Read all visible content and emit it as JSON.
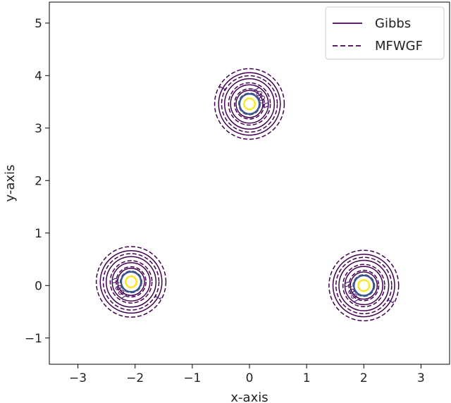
{
  "chart_data": {
    "type": "contour",
    "xlabel": "x-axis",
    "ylabel": "y-axis",
    "xlim": [
      -3.5,
      3.5
    ],
    "ylim": [
      -1.5,
      5.4
    ],
    "xticks": [
      -3,
      -2,
      -1,
      0,
      1,
      2,
      3
    ],
    "yticks": [
      -1,
      0,
      1,
      2,
      3,
      4,
      5
    ],
    "xtick_labels": [
      "−3",
      "−2",
      "−1",
      "0",
      "1",
      "2",
      "3"
    ],
    "ytick_labels": [
      "−1",
      "0",
      "1",
      "2",
      "3",
      "4",
      "5"
    ],
    "grid": false,
    "legend_position": "top-right",
    "series": [
      {
        "name": "Gibbs",
        "line_style": "solid",
        "color": "#440154"
      },
      {
        "name": "MFWGF",
        "line_style": "dashed",
        "color": "#440154"
      }
    ],
    "modes": [
      {
        "x": -2.07,
        "y": 0.07
      },
      {
        "x": 0.0,
        "y": 3.46
      },
      {
        "x": 2.0,
        "y": 0.0
      }
    ],
    "levels": [
      {
        "label": "1",
        "color": "#440154",
        "gibbs_radius": 0.62,
        "mfwgf_radius": 0.7
      },
      {
        "label": "",
        "color": "#440154",
        "gibbs_radius": 0.5,
        "mfwgf_radius": 0.56
      },
      {
        "label": "",
        "color": "#440154",
        "gibbs_radius": 0.38,
        "mfwgf_radius": 0.42
      },
      {
        "label": "100.0",
        "color": "#440154",
        "gibbs_radius": 0.27,
        "mfwgf_radius": 0.3
      },
      {
        "label": "",
        "color": "#3b528b",
        "gibbs_radius": 0.2,
        "mfwgf_radius": 0.21
      },
      {
        "label": "",
        "color": "#fde725",
        "gibbs_radius": 0.11,
        "mfwgf_radius": 0.11
      }
    ]
  }
}
